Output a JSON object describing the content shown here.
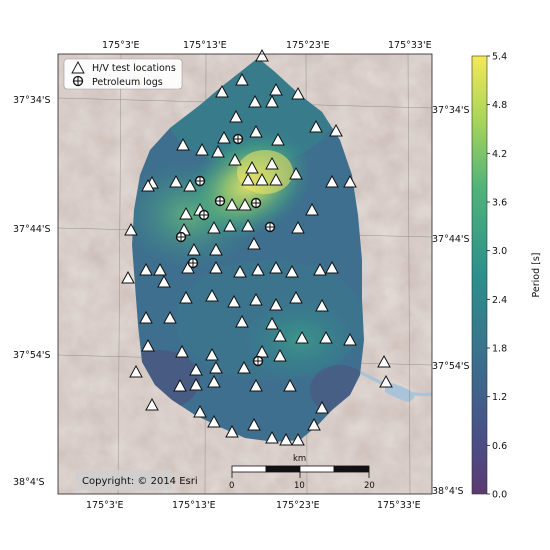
{
  "map": {
    "lon_ticks_top": [
      "175°3'E",
      "175°13'E",
      "175°23'E",
      "175°33'E"
    ],
    "lon_ticks_bottom": [
      "175°3'E",
      "175°13'E",
      "175°23'E",
      "175°33'E"
    ],
    "lat_ticks_left": [
      "37°34'S",
      "37°44'S",
      "37°54'S",
      "38°4'S"
    ],
    "lat_ticks_right": [
      "37°34'S",
      "37°44'S",
      "37°54'S",
      "38°4'S"
    ],
    "legend": {
      "hv_label": "H/V test locations",
      "petroleum_label": "Petroleum logs"
    },
    "copyright": "Copyright: © 2014 Esri",
    "scalebar": {
      "unit": "km",
      "labels": [
        "0",
        "10",
        "20"
      ]
    },
    "colorbar": {
      "label": "Period [s]",
      "ticks": [
        "5.4",
        "4.8",
        "4.2",
        "3.6",
        "3.0",
        "2.4",
        "1.8",
        "1.2",
        "0.6",
        "0.0"
      ],
      "min": 0.0,
      "max": 5.4
    },
    "colors": {
      "terrain": "#cdbfb9",
      "water": "#a9c3d8",
      "viridis_dark": "#440154",
      "viridis_mid": "#21918c",
      "viridis_bright": "#fde725"
    },
    "icons": [
      "triangle-marker-icon",
      "crosshair-circle-icon"
    ]
  }
}
